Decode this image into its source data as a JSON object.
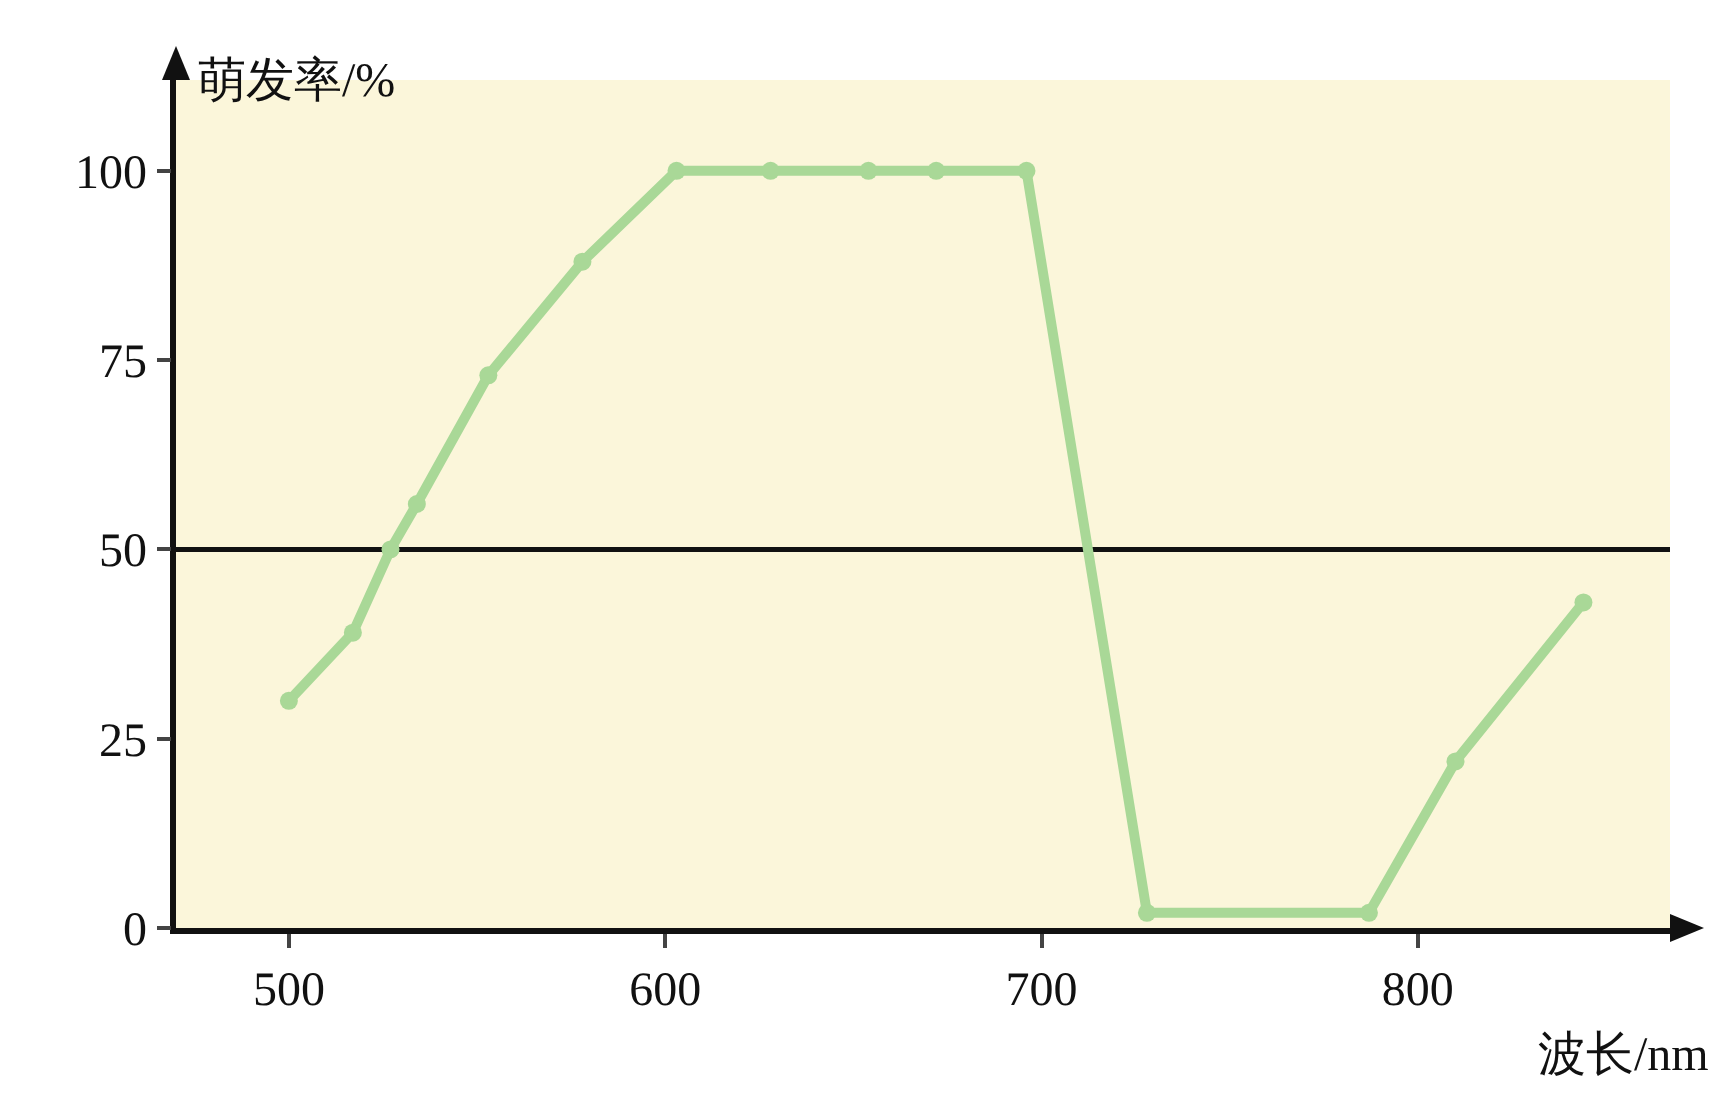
{
  "chart_data": {
    "type": "line",
    "xlabel": "波长/nm",
    "ylabel": "萌发率/%",
    "x": [
      500,
      517,
      527,
      534,
      553,
      578,
      603,
      628,
      654,
      672,
      696,
      728,
      787,
      810,
      844
    ],
    "values": [
      30,
      39,
      50,
      56,
      73,
      88,
      100,
      100,
      100,
      100,
      100,
      2,
      2,
      22,
      43
    ],
    "color": "#a9d897",
    "marker": "circle",
    "line_style": "solid",
    "xlim": [
      470,
      867
    ],
    "ylim": [
      0,
      112
    ],
    "xticks": [
      500,
      600,
      700,
      800
    ],
    "yticks": [
      {
        "value": 0,
        "label": "0"
      },
      25,
      50,
      75,
      100
    ],
    "ref_lines": [
      {
        "axis": "y",
        "value": 50,
        "color": "#111111"
      }
    ],
    "grid": false,
    "legend": false
  }
}
